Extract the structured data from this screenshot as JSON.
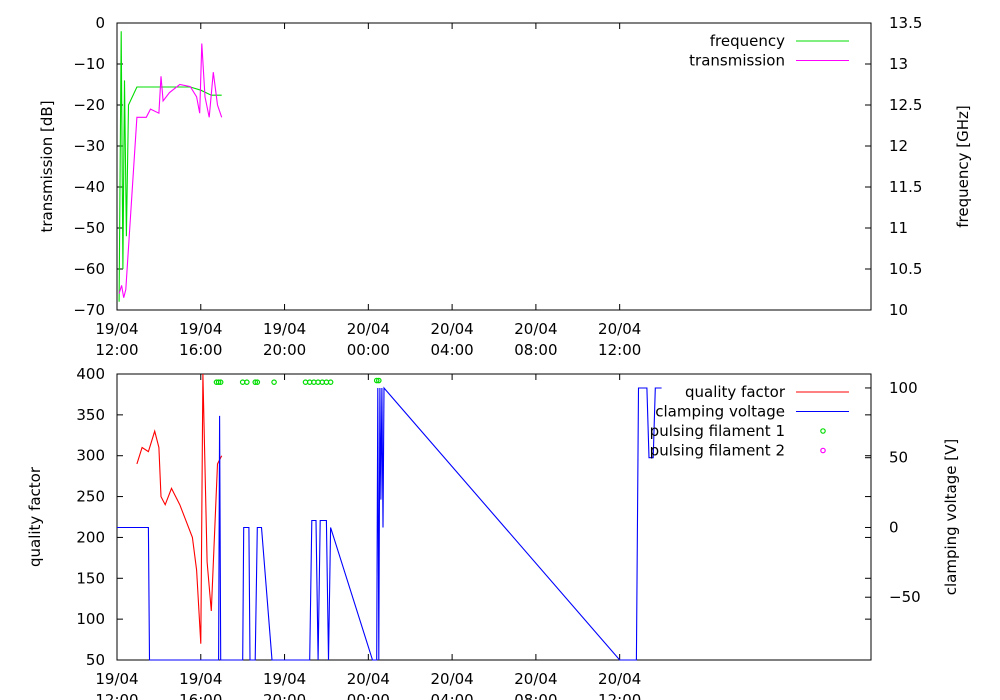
{
  "chart_data": [
    {
      "type": "line",
      "ylabel": "transmission [dB]",
      "y2label": "frequency [GHz]",
      "x_range_hours": [
        0,
        36
      ],
      "x_ticks": [
        {
          "hours": 0,
          "date": "19/04",
          "time": "12:00"
        },
        {
          "hours": 4,
          "date": "19/04",
          "time": "16:00"
        },
        {
          "hours": 8,
          "date": "19/04",
          "time": "20:00"
        },
        {
          "hours": 12,
          "date": "20/04",
          "time": "00:00"
        },
        {
          "hours": 16,
          "date": "20/04",
          "time": "04:00"
        },
        {
          "hours": 20,
          "date": "20/04",
          "time": "08:00"
        },
        {
          "hours": 24,
          "date": "20/04",
          "time": "12:00"
        }
      ],
      "ylim": [
        -70,
        0
      ],
      "y_ticks": [
        "0",
        "−10",
        "−20",
        "−30",
        "−40",
        "−50",
        "−60",
        "−70"
      ],
      "y2lim": [
        10,
        13.5
      ],
      "y2_ticks": [
        "13.5",
        "13",
        "12.5",
        "12",
        "11.5",
        "11",
        "10.5",
        "10"
      ],
      "legend_position": "top-right",
      "series": [
        {
          "name": "frequency",
          "color": "#00dd00",
          "axis": "right",
          "points": [
            [
              0.1,
              10.1
            ],
            [
              0.2,
              13.4
            ],
            [
              0.28,
              10.5
            ],
            [
              0.36,
              12.8
            ],
            [
              0.45,
              10.9
            ],
            [
              0.55,
              12.5
            ],
            [
              0.95,
              12.72
            ],
            [
              2.0,
              12.72
            ],
            [
              3.5,
              12.72
            ],
            [
              4.0,
              12.68
            ],
            [
              4.5,
              12.62
            ],
            [
              5.0,
              12.62
            ]
          ]
        },
        {
          "name": "transmission",
          "color": "#ff00ff",
          "axis": "left",
          "points": [
            [
              0.1,
              -66
            ],
            [
              0.22,
              -64
            ],
            [
              0.32,
              -67
            ],
            [
              0.42,
              -65
            ],
            [
              0.95,
              -23
            ],
            [
              1.4,
              -23
            ],
            [
              1.6,
              -21
            ],
            [
              2.0,
              -22
            ],
            [
              2.1,
              -13
            ],
            [
              2.2,
              -19
            ],
            [
              2.5,
              -17
            ],
            [
              3.0,
              -15
            ],
            [
              3.5,
              -15.5
            ],
            [
              3.8,
              -18
            ],
            [
              3.95,
              -22
            ],
            [
              4.05,
              -5
            ],
            [
              4.2,
              -18
            ],
            [
              4.4,
              -23
            ],
            [
              4.6,
              -12
            ],
            [
              4.8,
              -20
            ],
            [
              5.0,
              -23
            ]
          ]
        }
      ]
    },
    {
      "type": "line",
      "ylabel": "quality factor",
      "y2label": "clamping voltage [V]",
      "x_range_hours": [
        0,
        36
      ],
      "x_ticks": [
        {
          "hours": 0,
          "date": "19/04",
          "time": "12:00"
        },
        {
          "hours": 4,
          "date": "19/04",
          "time": "16:00"
        },
        {
          "hours": 8,
          "date": "19/04",
          "time": "20:00"
        },
        {
          "hours": 12,
          "date": "20/04",
          "time": "00:00"
        },
        {
          "hours": 16,
          "date": "20/04",
          "time": "04:00"
        },
        {
          "hours": 20,
          "date": "20/04",
          "time": "08:00"
        },
        {
          "hours": 24,
          "date": "20/04",
          "time": "12:00"
        }
      ],
      "ylim": [
        50,
        400
      ],
      "y_ticks": [
        "400",
        "350",
        "300",
        "250",
        "200",
        "150",
        "100",
        "50"
      ],
      "y2lim": [
        -95,
        110
      ],
      "y2_ticks": [
        "100",
        "50",
        "0",
        "−50"
      ],
      "legend_position": "top-right",
      "series": [
        {
          "name": "quality factor",
          "color": "#ff0000",
          "axis": "left",
          "points": [
            [
              0.95,
              290
            ],
            [
              1.2,
              310
            ],
            [
              1.5,
              305
            ],
            [
              1.8,
              330
            ],
            [
              2.0,
              310
            ],
            [
              2.1,
              250
            ],
            [
              2.3,
              240
            ],
            [
              2.6,
              260
            ],
            [
              3.0,
              240
            ],
            [
              3.3,
              220
            ],
            [
              3.6,
              200
            ],
            [
              3.8,
              160
            ],
            [
              4.0,
              70
            ],
            [
              4.1,
              400
            ],
            [
              4.3,
              170
            ],
            [
              4.5,
              110
            ],
            [
              4.8,
              290
            ],
            [
              5.0,
              300
            ]
          ]
        },
        {
          "name": "clamping voltage",
          "color": "#0000ff",
          "axis": "right",
          "points": [
            [
              0,
              0
            ],
            [
              1.5,
              0
            ],
            [
              1.55,
              -95
            ],
            [
              4.85,
              -95
            ],
            [
              4.9,
              80
            ],
            [
              4.95,
              -95
            ],
            [
              6.0,
              -95
            ],
            [
              6.05,
              0
            ],
            [
              6.3,
              0
            ],
            [
              6.35,
              -95
            ],
            [
              6.6,
              -95
            ],
            [
              6.7,
              0
            ],
            [
              6.9,
              0
            ],
            [
              7.4,
              -95
            ],
            [
              9.2,
              -95
            ],
            [
              9.3,
              5
            ],
            [
              9.5,
              5
            ],
            [
              9.6,
              -95
            ],
            [
              9.7,
              5
            ],
            [
              10.0,
              5
            ],
            [
              10.1,
              -95
            ],
            [
              10.2,
              0
            ],
            [
              12.2,
              -95
            ],
            [
              12.4,
              -95
            ],
            [
              12.45,
              100
            ],
            [
              12.5,
              -95
            ],
            [
              12.55,
              100
            ],
            [
              12.6,
              20
            ],
            [
              12.65,
              100
            ],
            [
              12.7,
              0
            ],
            [
              12.75,
              100
            ],
            [
              24.0,
              -95
            ],
            [
              24.8,
              -95
            ],
            [
              24.9,
              100
            ],
            [
              25.3,
              100
            ],
            [
              25.4,
              50
            ],
            [
              25.6,
              50
            ],
            [
              25.7,
              100
            ],
            [
              26.0,
              100
            ]
          ]
        },
        {
          "name": "pulsing filament 1",
          "color": "#00dd00",
          "marker": "circle",
          "axis": "left",
          "points": [
            [
              4.75,
              390
            ],
            [
              4.85,
              390
            ],
            [
              4.95,
              390
            ],
            [
              6.0,
              390
            ],
            [
              6.2,
              390
            ],
            [
              6.6,
              390
            ],
            [
              6.7,
              390
            ],
            [
              7.5,
              390
            ],
            [
              9.0,
              390
            ],
            [
              9.2,
              390
            ],
            [
              9.4,
              390
            ],
            [
              9.6,
              390
            ],
            [
              9.8,
              390
            ],
            [
              10.0,
              390
            ],
            [
              10.2,
              390
            ],
            [
              12.4,
              392
            ],
            [
              12.5,
              392
            ]
          ]
        },
        {
          "name": "pulsing filament 2",
          "color": "#ff00ff",
          "marker": "circle",
          "axis": "left",
          "points": []
        }
      ]
    }
  ]
}
